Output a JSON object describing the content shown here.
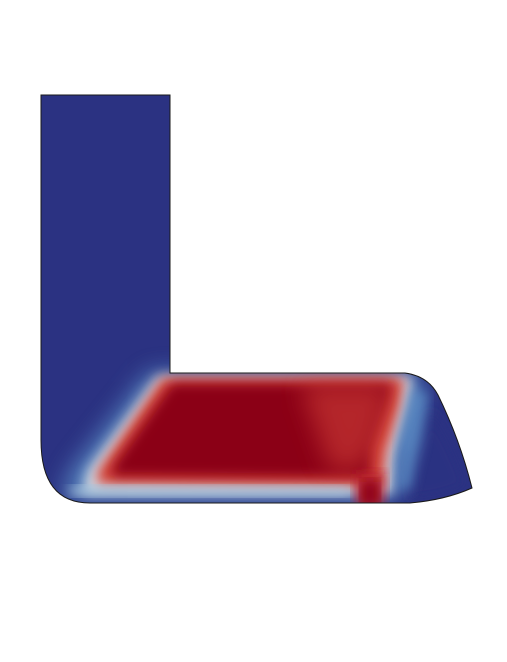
{
  "scene": {
    "background": "#ffffff",
    "colormap": {
      "name": "cool-to-warm",
      "low": "#2b3282",
      "low_mid": "#5b8ec6",
      "mid": "#d8e3ea",
      "high_mid": "#d6453a",
      "high": "#8b0018"
    },
    "outline_color": "#1a1a1a",
    "field_shown": true
  }
}
